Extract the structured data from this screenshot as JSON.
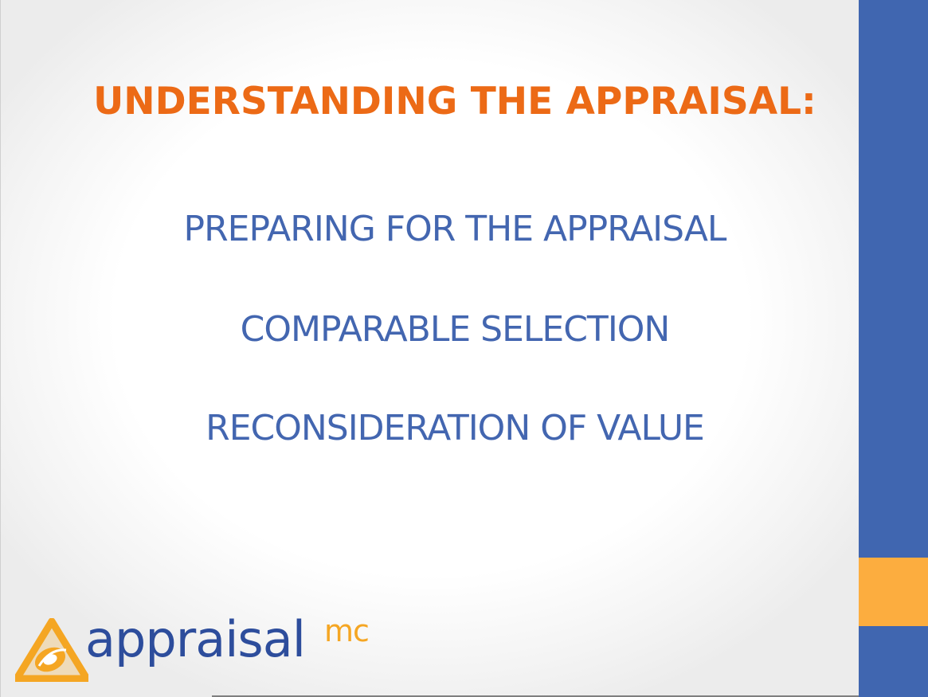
{
  "slide": {
    "title": "UNDERSTANDING THE APPRAISAL:",
    "items": [
      "PREPARING FOR THE APPRAISAL",
      "COMPARABLE SELECTION",
      "RECONSIDERATION OF VALUE"
    ]
  },
  "logo": {
    "word": "appraisal",
    "superscript": "mc",
    "icon": "appraisal-logo-icon"
  },
  "colors": {
    "title": "#ec6a16",
    "items": "#4366b0",
    "sidebar_blue": "#4066b0",
    "sidebar_orange": "#fcad3f",
    "logo_blue": "#2d4d9c",
    "logo_orange": "#f5a623"
  }
}
